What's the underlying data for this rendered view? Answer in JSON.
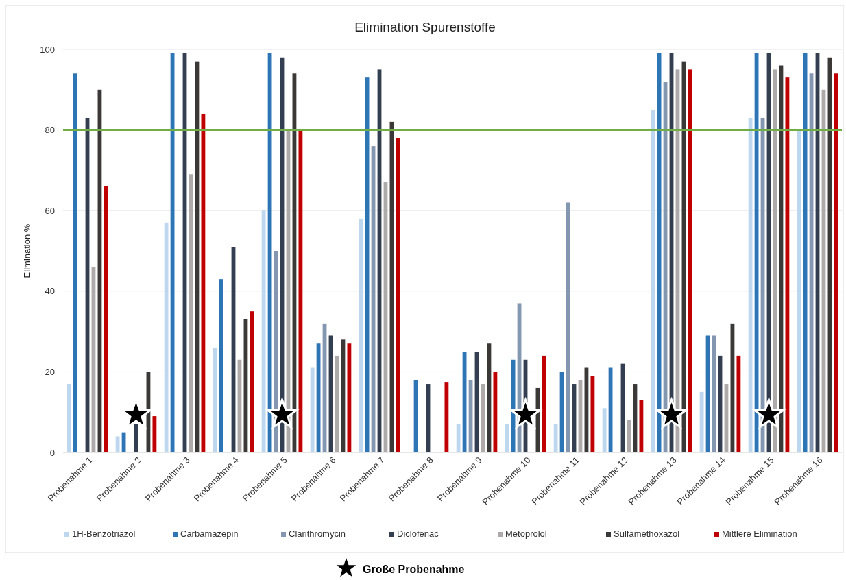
{
  "chart_data": {
    "type": "bar",
    "title": "Elimination Spurenstoffe",
    "ylabel": "Elimination %",
    "categories": [
      "Probenahme 1",
      "Probenahme 2",
      "Probenahme 3",
      "Probenahme 4",
      "Probenahme 5",
      "Probenahme 6",
      "Probenahme 7",
      "Probenahme 8",
      "Probenahme 9",
      "Probenahme 10",
      "Probenahme 11",
      "Probenahme 12",
      "Probenahme 13",
      "Probenahme 14",
      "Probenahme 15",
      "Probenahme 16"
    ],
    "series": [
      {
        "name": "1H-Benzotriazol",
        "color": "#bdd7ee",
        "values": [
          17,
          4,
          57,
          26,
          60,
          21,
          58,
          null,
          7,
          7,
          7,
          11,
          85,
          15,
          83,
          80
        ]
      },
      {
        "name": "Carbamazepin",
        "color": "#2e75b6",
        "values": [
          94,
          5,
          99,
          43,
          99,
          27,
          93,
          18,
          25,
          23,
          20,
          21,
          99,
          29,
          99,
          99
        ]
      },
      {
        "name": "Clarithromycin",
        "color": "#8497b0",
        "values": [
          null,
          null,
          null,
          null,
          50,
          32,
          76,
          null,
          18,
          37,
          62,
          null,
          92,
          29,
          83,
          94
        ]
      },
      {
        "name": "Diclofenac",
        "color": "#333f50",
        "values": [
          83,
          7,
          99,
          51,
          98,
          29,
          95,
          17,
          25,
          23,
          17,
          22,
          99,
          24,
          99,
          99
        ]
      },
      {
        "name": "Metoprolol",
        "color": "#aeaaaa",
        "values": [
          46,
          null,
          69,
          23,
          80,
          24,
          67,
          null,
          17,
          null,
          18,
          8,
          95,
          17,
          95,
          90
        ]
      },
      {
        "name": "Sulfamethoxazol",
        "color": "#3b3838",
        "values": [
          90,
          20,
          97,
          33,
          94,
          28,
          82,
          null,
          27,
          16,
          21,
          17,
          97,
          32,
          96,
          98
        ]
      },
      {
        "name": "Mittlere Elimination",
        "color": "#c00000",
        "values": [
          66,
          9,
          84,
          35,
          80,
          27,
          78,
          17.5,
          20,
          24,
          19,
          13,
          95,
          24,
          93,
          94
        ]
      }
    ],
    "ylim": [
      0,
      100
    ],
    "yticks": [
      0,
      20,
      40,
      60,
      80,
      100
    ],
    "grid": "y",
    "legend": "bottom",
    "ref_lines": [
      {
        "axis": "y",
        "value": 80,
        "color": "#70ad47"
      }
    ],
    "annotations": [
      "Große Probenahme"
    ]
  }
}
